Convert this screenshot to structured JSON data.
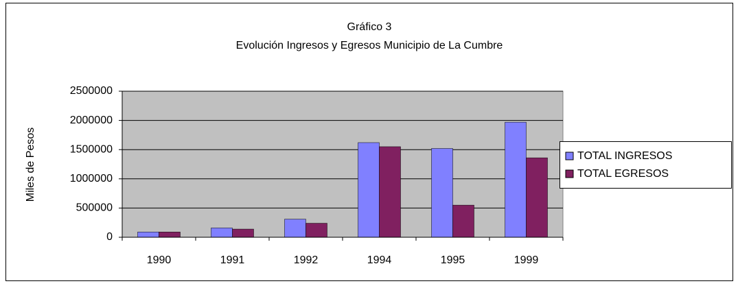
{
  "chart_data": {
    "type": "bar",
    "title": "Gráfico 3",
    "subtitle": "Evolución Ingresos y Egresos Municipio de La Cumbre",
    "ylabel": "Miles de Pesos",
    "categories": [
      "1990",
      "1991",
      "1992",
      "1994",
      "1995",
      "1999"
    ],
    "series": [
      {
        "name": "TOTAL INGRESOS",
        "color": "#8080ff",
        "values": [
          90000,
          160000,
          310000,
          1620000,
          1520000,
          1970000
        ]
      },
      {
        "name": "TOTAL EGRESOS",
        "color": "#802060",
        "values": [
          90000,
          140000,
          240000,
          1550000,
          550000,
          1360000
        ]
      }
    ],
    "ylim": [
      0,
      2500000
    ],
    "yticks": [
      0,
      500000,
      1000000,
      1500000,
      2000000,
      2500000
    ],
    "grid": true,
    "legend": "right"
  }
}
